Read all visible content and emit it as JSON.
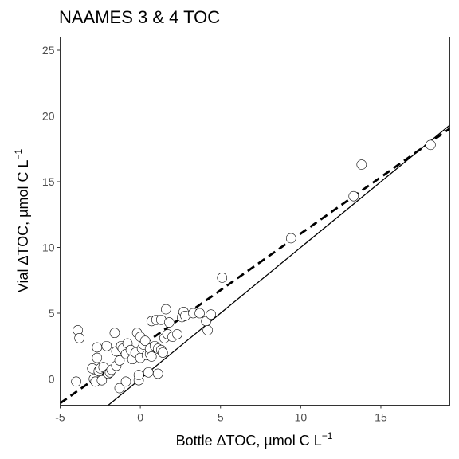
{
  "chart_data": {
    "type": "scatter",
    "title": "NAAMES 3 & 4 TOC",
    "xlabel_main": "Bottle ΔTOC, µmol C L",
    "xlabel_sup": "−1",
    "ylabel_main": "Vial ΔTOC, µmol C L",
    "ylabel_sup": "−1",
    "xlim": [
      -5,
      19.3
    ],
    "ylim": [
      -2,
      26
    ],
    "xticks": [
      -5,
      0,
      5,
      10,
      15
    ],
    "yticks": [
      0,
      5,
      10,
      15,
      20,
      25
    ],
    "grid": false,
    "legend": "none",
    "lines": [
      {
        "style": "dashed",
        "slope": 0.86,
        "intercept": 2.45
      },
      {
        "style": "solid",
        "slope": 1.0,
        "intercept": 0.0
      }
    ],
    "points": [
      [
        -4.0,
        -0.2
      ],
      [
        -3.9,
        3.7
      ],
      [
        -3.8,
        3.1
      ],
      [
        -3.0,
        0.8
      ],
      [
        -2.9,
        0.0
      ],
      [
        -2.8,
        -0.2
      ],
      [
        -2.8,
        -0.2
      ],
      [
        -2.7,
        2.4
      ],
      [
        -2.7,
        1.6
      ],
      [
        -2.6,
        0.6
      ],
      [
        -2.5,
        0.8
      ],
      [
        -2.4,
        -0.1
      ],
      [
        -2.3,
        0.9
      ],
      [
        -2.1,
        2.5
      ],
      [
        -2.0,
        0.4
      ],
      [
        -1.9,
        0.5
      ],
      [
        -1.8,
        0.7
      ],
      [
        -1.6,
        3.5
      ],
      [
        -1.5,
        1.0
      ],
      [
        -1.5,
        2.1
      ],
      [
        -1.3,
        1.4
      ],
      [
        -1.3,
        -0.7
      ],
      [
        -1.2,
        2.5
      ],
      [
        -1.1,
        2.3
      ],
      [
        -0.9,
        1.9
      ],
      [
        -0.9,
        -0.2
      ],
      [
        -0.8,
        2.7
      ],
      [
        -0.6,
        2.2
      ],
      [
        -0.5,
        1.5
      ],
      [
        -0.3,
        2.0
      ],
      [
        -0.2,
        3.5
      ],
      [
        -0.1,
        -0.1
      ],
      [
        -0.1,
        0.3
      ],
      [
        0.0,
        3.2
      ],
      [
        0.0,
        1.6
      ],
      [
        0.1,
        2.3
      ],
      [
        0.2,
        2.6
      ],
      [
        0.3,
        2.9
      ],
      [
        0.4,
        1.8
      ],
      [
        0.5,
        0.5
      ],
      [
        0.6,
        1.9
      ],
      [
        0.6,
        2.3
      ],
      [
        0.7,
        4.4
      ],
      [
        0.7,
        1.7
      ],
      [
        0.9,
        2.5
      ],
      [
        1.0,
        4.5
      ],
      [
        1.1,
        2.3
      ],
      [
        1.1,
        0.4
      ],
      [
        1.3,
        4.5
      ],
      [
        1.3,
        2.2
      ],
      [
        1.4,
        2.0
      ],
      [
        1.5,
        3.1
      ],
      [
        1.6,
        5.3
      ],
      [
        1.7,
        3.4
      ],
      [
        1.8,
        4.3
      ],
      [
        2.0,
        3.2
      ],
      [
        2.3,
        3.4
      ],
      [
        2.6,
        4.7
      ],
      [
        2.7,
        5.1
      ],
      [
        2.8,
        4.8
      ],
      [
        3.3,
        5.0
      ],
      [
        3.7,
        5.0
      ],
      [
        4.1,
        4.4
      ],
      [
        4.2,
        3.7
      ],
      [
        4.4,
        4.9
      ],
      [
        5.1,
        7.7
      ],
      [
        9.4,
        10.7
      ],
      [
        13.3,
        13.9
      ],
      [
        13.8,
        16.3
      ],
      [
        18.1,
        17.8
      ]
    ],
    "point_fill": "#ffffff",
    "point_stroke": "#000000"
  }
}
